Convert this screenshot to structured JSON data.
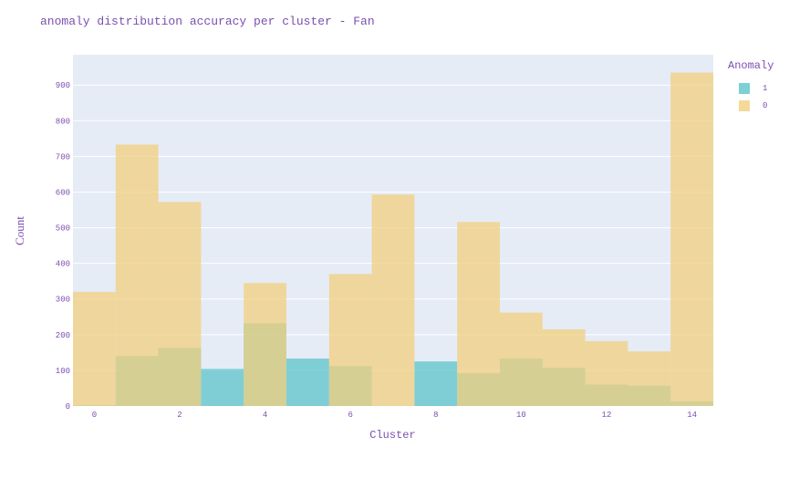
{
  "chart_data": {
    "type": "bar",
    "barmode": "overlay",
    "title": "anomaly distribution accuracy per cluster - Fan",
    "xlabel": "Cluster",
    "ylabel": "Count",
    "x": [
      0,
      1,
      2,
      3,
      4,
      5,
      6,
      7,
      8,
      9,
      10,
      11,
      12,
      13,
      14
    ],
    "xlim": [
      -0.5,
      14.5
    ],
    "ylim": [
      0,
      985
    ],
    "x_ticks": [
      "0",
      "2",
      "4",
      "6",
      "8",
      "10",
      "12",
      "14"
    ],
    "y_ticks": [
      "0",
      "100",
      "200",
      "300",
      "400",
      "500",
      "600",
      "700",
      "800",
      "900"
    ],
    "legend_title": "Anomaly",
    "legend_position": "top-right",
    "grid": true,
    "background_color": "#e5ecf6",
    "series": [
      {
        "name": "1",
        "color": "#5cc4c9",
        "values": [
          2,
          140,
          163,
          104,
          232,
          133,
          112,
          0,
          125,
          92,
          133,
          107,
          60,
          57,
          13
        ]
      },
      {
        "name": "0",
        "color": "#f2cf7e",
        "values": [
          320,
          733,
          572,
          0,
          345,
          0,
          370,
          593,
          0,
          516,
          262,
          215,
          182,
          153,
          935
        ]
      }
    ]
  }
}
